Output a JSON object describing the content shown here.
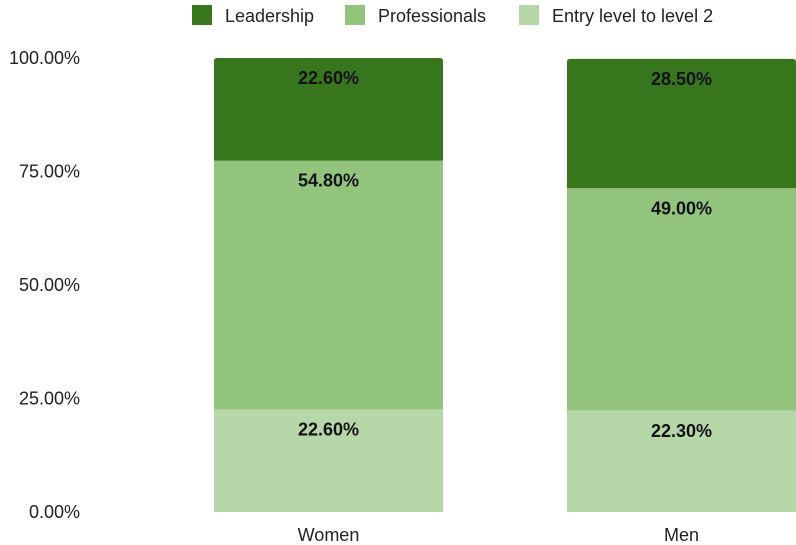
{
  "chart_data": {
    "type": "bar",
    "stacked": true,
    "categories": [
      "Women",
      "Men"
    ],
    "series": [
      {
        "name": "Entry level to level 2",
        "values": [
          22.6,
          22.3
        ],
        "color": "#b6d7a8",
        "labels": [
          "22.60%",
          "22.30%"
        ]
      },
      {
        "name": "Professionals",
        "values": [
          54.8,
          49.0
        ],
        "color": "#93c47d",
        "labels": [
          "54.80%",
          "49.00%"
        ]
      },
      {
        "name": "Leadership",
        "values": [
          22.6,
          28.5
        ],
        "color": "#38761d",
        "labels": [
          "22.60%",
          "28.50%"
        ]
      }
    ],
    "legend_order": [
      "Leadership",
      "Professionals",
      "Entry level to level 2"
    ],
    "legend_position": "top",
    "ylim": [
      0,
      100
    ],
    "y_ticks": [
      0,
      25,
      50,
      75,
      100
    ],
    "y_tick_labels": [
      "0.00%",
      "25.00%",
      "50.00%",
      "75.00%",
      "100.00%"
    ],
    "grid": false,
    "title": "",
    "xlabel": "",
    "ylabel": ""
  }
}
